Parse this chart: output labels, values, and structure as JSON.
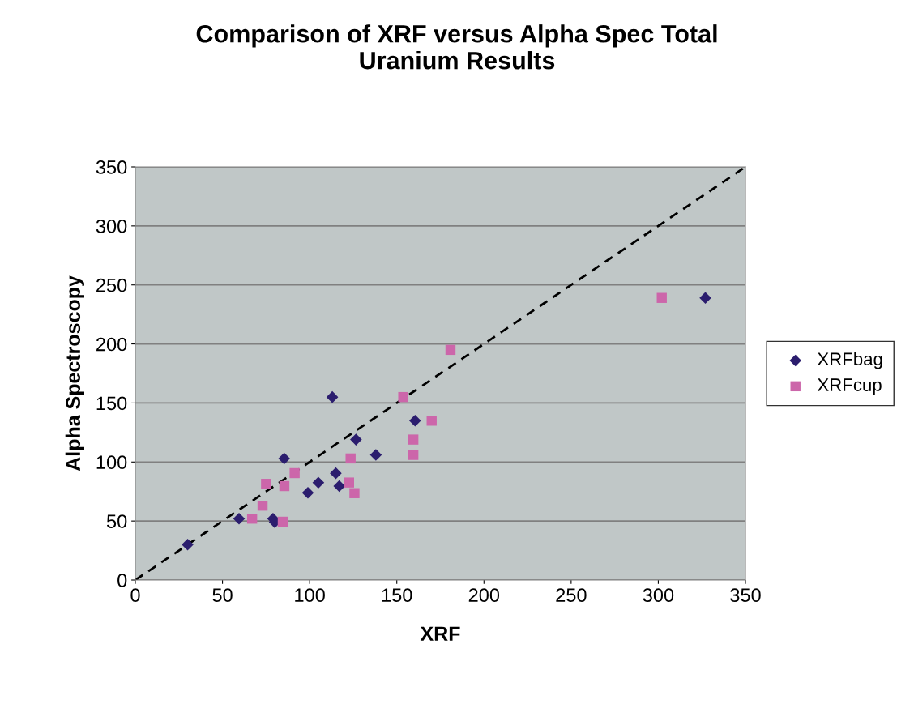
{
  "chart_data": {
    "type": "scatter",
    "title": "Comparison of XRF versus Alpha Spec Total\nUranium Results",
    "xlabel": "XRF",
    "ylabel": "Alpha Spectroscopy",
    "xlim": [
      0,
      350
    ],
    "ylim": [
      0,
      350
    ],
    "xticks": [
      0,
      50,
      100,
      150,
      200,
      250,
      300,
      350
    ],
    "yticks": [
      0,
      50,
      100,
      150,
      200,
      250,
      300,
      350
    ],
    "grid": "y",
    "legend": "right",
    "series": [
      {
        "name": "XRFbag",
        "color": "#2b1d6e",
        "marker": "diamond",
        "x": [
          30,
          59.5,
          79,
          80,
          85.4,
          99,
          105,
          115,
          117,
          113,
          126.6,
          138,
          160.5,
          327
        ],
        "values": [
          30,
          52,
          52,
          49,
          103,
          74,
          82.5,
          90.5,
          79.6,
          155,
          119,
          106,
          135,
          239
        ]
      },
      {
        "name": "XRFcup",
        "color": "#cc66aa",
        "marker": "square",
        "x": [
          67,
          73,
          75,
          85.5,
          84.6,
          91.4,
          123.5,
          122.6,
          125.7,
          153.7,
          159.5,
          159.5,
          170,
          180.8,
          302
        ],
        "values": [
          52,
          63,
          81.5,
          79.6,
          49.4,
          90.6,
          103,
          82.6,
          73.6,
          155,
          119,
          106,
          135,
          195,
          239
        ]
      },
      {
        "type": "line",
        "color": "#000000",
        "line_style": "dashed",
        "marker": "none",
        "x": [
          0,
          350
        ],
        "values": [
          0,
          350
        ]
      }
    ]
  }
}
